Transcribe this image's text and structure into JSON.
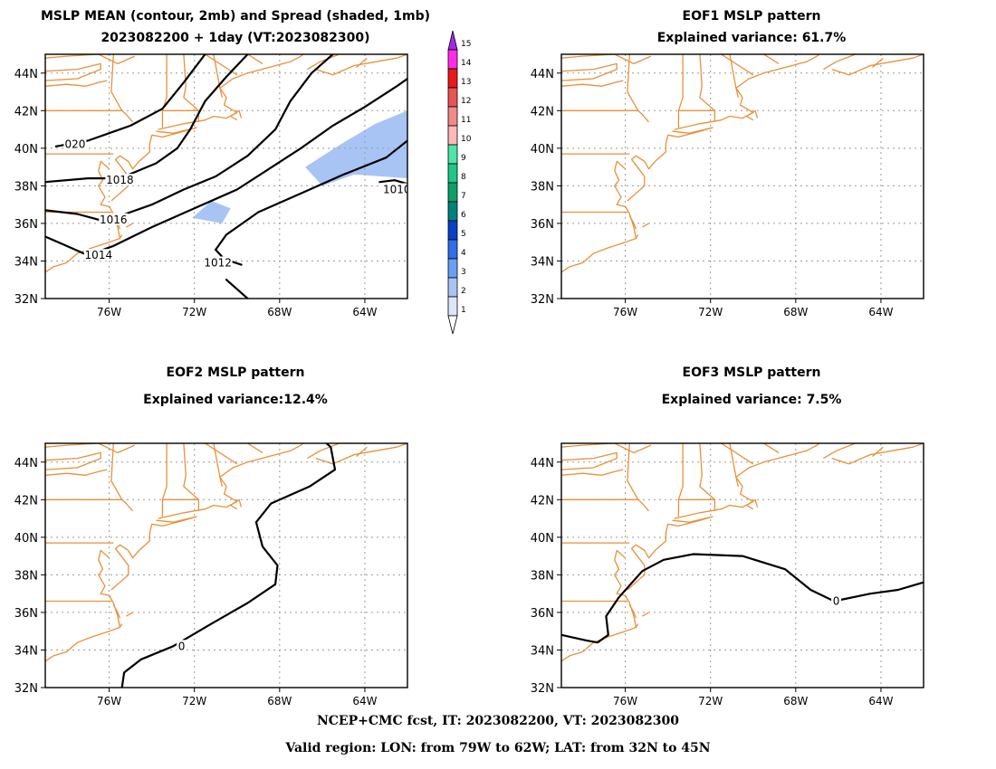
{
  "panels": [
    {
      "title_line1": "MSLP MEAN (contour, 2mb) and Spread (shaded, 1mb)",
      "title_line2": "2023082200 + 1day (VT:2023082300)"
    },
    {
      "title_line1": "EOF1 MSLP pattern",
      "title_line2": "Explained variance: 61.7%"
    },
    {
      "title_line1": "EOF2 MSLP pattern",
      "title_line2": "Explained variance:12.4%"
    },
    {
      "title_line1": "EOF3 MSLP pattern",
      "title_line2": "Explained variance: 7.5%"
    }
  ],
  "footer": {
    "line1": "NCEP+CMC fcst, IT: 2023082200, VT: 2023082300",
    "line2": "Valid region: LON: from 79W to 62W; LAT: from 32N to 45N"
  },
  "colors": {
    "coast": "#E8913A",
    "contour": "#000000",
    "spread_shade": "#9EBEF5",
    "grid": "#9a9a9a"
  },
  "chart_data": [
    {
      "type": "contour",
      "panel": "mean",
      "x_ticks": [
        "76W",
        "72W",
        "68W",
        "64W"
      ],
      "y_ticks": [
        "44N",
        "42N",
        "40N",
        "38N",
        "36N",
        "34N",
        "32N"
      ],
      "lon_range": [
        -79,
        -62
      ],
      "lat_range": [
        32,
        45
      ],
      "contour_labels": [
        "020",
        "1018",
        "1016",
        "1014",
        "1012",
        "1010"
      ],
      "contours": [
        {
          "label": "020",
          "label_at": [
            -77.6,
            40.2
          ],
          "points": [
            [
              -78.5,
              40.1
            ],
            [
              -77,
              40.4
            ],
            [
              -75,
              41.2
            ],
            [
              -73.5,
              42.1
            ],
            [
              -72.5,
              43.5
            ],
            [
              -71.5,
              45
            ]
          ]
        },
        {
          "label": "1018",
          "label_at": [
            -75.5,
            38.3
          ],
          "points": [
            [
              -79,
              38.2
            ],
            [
              -77,
              38.4
            ],
            [
              -75.5,
              38.4
            ],
            [
              -73.8,
              39.2
            ],
            [
              -72.8,
              40
            ],
            [
              -72.2,
              41
            ],
            [
              -71.5,
              42.5
            ],
            [
              -70.5,
              43.8
            ],
            [
              -69.5,
              45
            ]
          ]
        },
        {
          "label": "1016",
          "label_at": [
            -75.8,
            36.2
          ],
          "points": [
            [
              -79,
              36.7
            ],
            [
              -77.5,
              36.5
            ],
            [
              -76.5,
              36.2
            ],
            [
              -75.5,
              36.4
            ],
            [
              -74,
              37
            ],
            [
              -72.5,
              37.8
            ],
            [
              -71,
              38.5
            ],
            [
              -69.5,
              39.6
            ],
            [
              -68.2,
              41
            ],
            [
              -67.5,
              42.5
            ],
            [
              -66.5,
              44
            ],
            [
              -65.5,
              45
            ]
          ]
        },
        {
          "label": "1014",
          "label_at": [
            -76.5,
            34.3
          ],
          "points": [
            [
              -79,
              35.3
            ],
            [
              -78,
              34.8
            ],
            [
              -77,
              34.3
            ],
            [
              -75.8,
              34.8
            ],
            [
              -74,
              35.8
            ],
            [
              -72,
              36.8
            ],
            [
              -70,
              37.8
            ],
            [
              -68.5,
              38.9
            ],
            [
              -67,
              40
            ],
            [
              -65.5,
              41.2
            ],
            [
              -64,
              42.2
            ],
            [
              -62.5,
              43.3
            ],
            [
              -62,
              43.7
            ]
          ]
        },
        {
          "label": "1012",
          "label_at": [
            -70.9,
            33.9
          ],
          "points": [
            [
              -71,
              34.6
            ],
            [
              -70.6,
              34.1
            ],
            [
              -69.8,
              33.8
            ]
          ]
        },
        {
          "label": "",
          "label_at": null,
          "points": [
            [
              -70.5,
              33
            ],
            [
              -70,
              32.5
            ],
            [
              -69.5,
              32
            ]
          ]
        },
        {
          "label": "",
          "label_at": null,
          "points": [
            [
              -71,
              34.6
            ],
            [
              -70.5,
              35.4
            ],
            [
              -69,
              36.6
            ],
            [
              -67,
              37.6
            ],
            [
              -65,
              38.6
            ],
            [
              -63,
              39.5
            ],
            [
              -62,
              40.4
            ]
          ]
        },
        {
          "label": "1010",
          "label_at": [
            -62.5,
            37.8
          ],
          "points": [
            [
              -63.3,
              38.2
            ],
            [
              -62.6,
              38.3
            ],
            [
              -62,
              38.1
            ]
          ]
        }
      ],
      "spread_levels": [
        1,
        2,
        3,
        4,
        5,
        6,
        7,
        8,
        9,
        10,
        11,
        12,
        13,
        14,
        15
      ],
      "spread_colors": [
        "#DCE6F8",
        "#A8C4F5",
        "#6B9FF2",
        "#2F6FE8",
        "#0A3FC8",
        "#00827C",
        "#0BA06A",
        "#1DC788",
        "#4CE6A8",
        "#FFB8B8",
        "#F28A8A",
        "#E85454",
        "#E81A1A",
        "#FF2EE6",
        "#A52AE8"
      ],
      "spread_patches": [
        {
          "value": 2,
          "points": [
            [
              -66.8,
              39
            ],
            [
              -65,
              40.3
            ],
            [
              -63.5,
              41.3
            ],
            [
              -62,
              42
            ],
            [
              -62,
              38.4
            ],
            [
              -63.2,
              38.5
            ],
            [
              -64.5,
              38.6
            ],
            [
              -66,
              38
            ]
          ]
        },
        {
          "value": 2,
          "points": [
            [
              -72.1,
              36.3
            ],
            [
              -71.2,
              37.2
            ],
            [
              -70.3,
              36.8
            ],
            [
              -70.7,
              36
            ]
          ]
        }
      ]
    },
    {
      "type": "contour",
      "panel": "eof1",
      "x_ticks": [
        "76W",
        "72W",
        "68W",
        "64W"
      ],
      "y_ticks": [
        "44N",
        "42N",
        "40N",
        "38N",
        "36N",
        "34N",
        "32N"
      ],
      "lon_range": [
        -79,
        -62
      ],
      "lat_range": [
        32,
        45
      ],
      "contours": []
    },
    {
      "type": "contour",
      "panel": "eof2",
      "x_ticks": [
        "76W",
        "72W",
        "68W",
        "64W"
      ],
      "y_ticks": [
        "44N",
        "42N",
        "40N",
        "38N",
        "36N",
        "34N",
        "32N"
      ],
      "lon_range": [
        -79,
        -62
      ],
      "lat_range": [
        32,
        45
      ],
      "contour_labels": [
        "0"
      ],
      "contours": [
        {
          "label": "0",
          "label_at": [
            -72.6,
            34.2
          ],
          "points": [
            [
              -75.4,
              32
            ],
            [
              -75.3,
              32.8
            ],
            [
              -74.5,
              33.5
            ],
            [
              -73,
              34.2
            ],
            [
              -71.2,
              35.4
            ],
            [
              -69.5,
              36.5
            ],
            [
              -68.2,
              37.5
            ],
            [
              -68.1,
              38.5
            ],
            [
              -68.8,
              39.5
            ],
            [
              -69.1,
              40.8
            ],
            [
              -68.4,
              41.8
            ],
            [
              -66.6,
              42.7
            ],
            [
              -65.4,
              43.6
            ],
            [
              -65.6,
              44.8
            ],
            [
              -65.8,
              45
            ]
          ]
        }
      ]
    },
    {
      "type": "contour",
      "panel": "eof3",
      "x_ticks": [
        "76W",
        "72W",
        "68W",
        "64W"
      ],
      "y_ticks": [
        "44N",
        "42N",
        "40N",
        "38N",
        "36N",
        "34N",
        "32N"
      ],
      "lon_range": [
        -79,
        -62
      ],
      "lat_range": [
        32,
        45
      ],
      "contour_labels": [
        "0"
      ],
      "contours": [
        {
          "label": "0",
          "label_at": [
            -66.1,
            36.6
          ],
          "points": [
            [
              -79,
              34.8
            ],
            [
              -77.8,
              34.5
            ],
            [
              -77.3,
              34.4
            ],
            [
              -76.8,
              34.8
            ],
            [
              -76.9,
              35.8
            ],
            [
              -76.3,
              36.8
            ],
            [
              -75.2,
              38.2
            ],
            [
              -74.2,
              38.8
            ],
            [
              -72.8,
              39.1
            ],
            [
              -70.5,
              39
            ],
            [
              -68.5,
              38.3
            ],
            [
              -67.3,
              37.2
            ],
            [
              -66.2,
              36.6
            ],
            [
              -64.5,
              37
            ],
            [
              -63.2,
              37.2
            ],
            [
              -62,
              37.6
            ]
          ]
        }
      ]
    }
  ]
}
